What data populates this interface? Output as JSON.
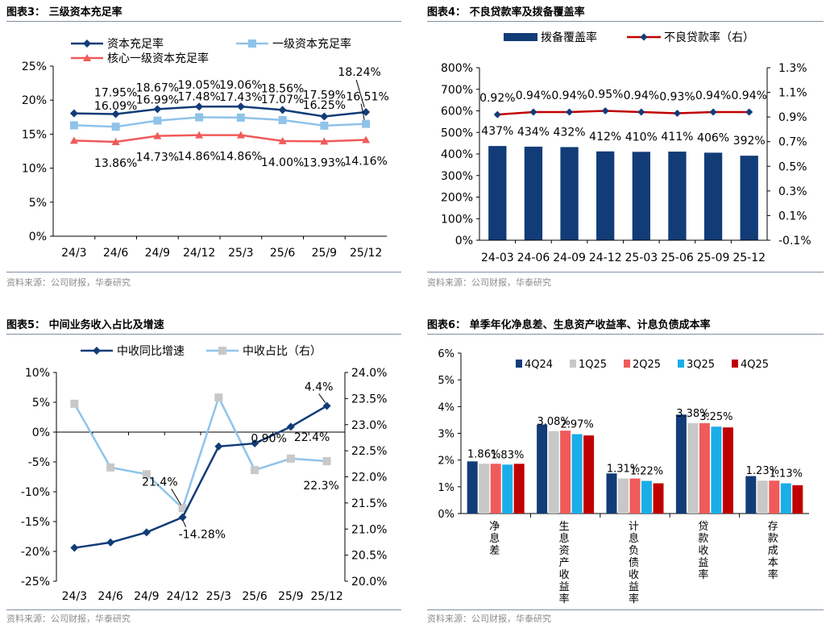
{
  "source_text": "资料来源：公司财报，华泰研究",
  "colors": {
    "navy": "#123c78",
    "lightblue": "#8fc3ea",
    "grey": "#c8c8c8",
    "red": "#f05a5a",
    "cyan": "#1aaee8",
    "darkred": "#c00000",
    "rule": "#7f8fa6"
  },
  "chart_data": [
    {
      "id": "chart3",
      "title": "图表3：  三级资本充足率",
      "type": "line",
      "categories": [
        "24/3",
        "24/6",
        "24/9",
        "24/12",
        "25/3",
        "25/6",
        "25/9",
        "25/12"
      ],
      "ylim": [
        0,
        25
      ],
      "yticks": [
        "0%",
        "5%",
        "10%",
        "15%",
        "20%",
        "25%"
      ],
      "legend_position": "top",
      "grid": false,
      "series": [
        {
          "name": "资本充足率",
          "values": [
            18.05,
            17.95,
            18.67,
            19.05,
            19.06,
            18.56,
            17.59,
            18.24
          ],
          "labels": [
            "",
            "17.95%",
            "18.67%",
            "19.05%",
            "19.06%",
            "18.56%",
            "17.59%",
            "18.24%"
          ]
        },
        {
          "name": "一级资本充足率",
          "values": [
            16.3,
            16.09,
            16.99,
            17.48,
            17.43,
            17.07,
            16.25,
            16.51
          ],
          "labels": [
            "",
            "16.09%",
            "16.99%",
            "17.48%",
            "17.43%",
            "17.07%",
            "16.25%",
            "16.51%"
          ]
        },
        {
          "name": "核心一级资本充足率",
          "values": [
            14.05,
            13.86,
            14.73,
            14.86,
            14.86,
            14.0,
            13.93,
            14.16
          ],
          "labels": [
            "",
            "13.86%",
            "14.73%",
            "14.86%",
            "14.86%",
            "14.00%",
            "13.93%",
            "14.16%"
          ]
        }
      ]
    },
    {
      "id": "chart4",
      "title": "图表4：  不良贷款率及拨备覆盖率",
      "type": "bar",
      "categories": [
        "24-03",
        "24-06",
        "24-09",
        "24-12",
        "25-03",
        "25-06",
        "25-09",
        "25-12"
      ],
      "ylim": [
        0,
        800
      ],
      "yticks": [
        "0%",
        "100%",
        "200%",
        "300%",
        "400%",
        "500%",
        "600%",
        "700%",
        "800%"
      ],
      "y2lim": [
        -0.1,
        1.3
      ],
      "y2ticks": [
        "-0.1%",
        "0.1%",
        "0.3%",
        "0.5%",
        "0.7%",
        "0.9%",
        "1.1%",
        "1.3%"
      ],
      "legend_position": "top",
      "grid": false,
      "series": [
        {
          "name": "拨备覆盖率",
          "kind": "bar",
          "axis": "left",
          "values": [
            437,
            434,
            432,
            412,
            410,
            411,
            406,
            392
          ],
          "labels": [
            "437%",
            "434%",
            "432%",
            "412%",
            "410%",
            "411%",
            "406%",
            "392%"
          ]
        },
        {
          "name": "不良贷款率（右）",
          "kind": "line",
          "axis": "right",
          "values": [
            0.92,
            0.94,
            0.94,
            0.95,
            0.94,
            0.93,
            0.94,
            0.94
          ],
          "labels": [
            "0.92%",
            "0.94%",
            "0.94%",
            "0.95%",
            "0.94%",
            "0.93%",
            "0.94%",
            "0.94%"
          ]
        }
      ]
    },
    {
      "id": "chart5",
      "title": "图表5：  中间业务收入占比及增速",
      "type": "line",
      "categories": [
        "24/3",
        "24/6",
        "24/9",
        "24/12",
        "25/3",
        "25/6",
        "25/9",
        "25/12"
      ],
      "ylim": [
        -25,
        10
      ],
      "yticks": [
        "-25%",
        "-20%",
        "-15%",
        "-10%",
        "-5%",
        "0%",
        "5%",
        "10%"
      ],
      "y2lim": [
        20.0,
        24.0
      ],
      "y2ticks": [
        "20.0%",
        "20.5%",
        "21.0%",
        "21.5%",
        "22.0%",
        "22.5%",
        "23.0%",
        "23.5%",
        "24.0%"
      ],
      "legend_position": "top",
      "grid": false,
      "series": [
        {
          "name": "中收同比增速",
          "axis": "left",
          "values": [
            -19.4,
            -18.5,
            -16.8,
            -14.28,
            -2.4,
            -1.9,
            0.9,
            4.4
          ]
        },
        {
          "name": "中收占比（右）",
          "axis": "right",
          "values": [
            23.4,
            22.18,
            22.05,
            21.4,
            23.52,
            22.13,
            22.35,
            22.3
          ]
        }
      ],
      "annotations": [
        {
          "series": 0,
          "index": 3,
          "text": "-14.28%"
        },
        {
          "series": 0,
          "index": 6,
          "text": "0.90%"
        },
        {
          "series": 0,
          "index": 7,
          "text": "4.4%"
        },
        {
          "series": 1,
          "index": 3,
          "text": "21.4%"
        },
        {
          "series": 1,
          "index": 6,
          "text": "22.4%"
        },
        {
          "series": 1,
          "index": 7,
          "text": "22.3%"
        }
      ]
    },
    {
      "id": "chart6",
      "title": "图表6：  单季年化净息差、生息资产收益率、计息负债成本率",
      "type": "bar",
      "categories": [
        "净息差",
        "生息资产收益率",
        "计息负债收益率",
        "贷款收益率",
        "存款成本率"
      ],
      "ylim": [
        0,
        6
      ],
      "yticks": [
        "0%",
        "1%",
        "2%",
        "3%",
        "4%",
        "5%",
        "6%"
      ],
      "legend_position": "top",
      "grid": false,
      "series": [
        {
          "name": "4Q24",
          "values": [
            1.95,
            3.33,
            1.5,
            3.7,
            1.4
          ]
        },
        {
          "name": "1Q25",
          "values": [
            1.86,
            3.08,
            1.31,
            3.38,
            1.23
          ]
        },
        {
          "name": "2Q25",
          "values": [
            1.86,
            3.1,
            1.31,
            3.38,
            1.23
          ]
        },
        {
          "name": "3Q25",
          "values": [
            1.83,
            2.97,
            1.22,
            3.25,
            1.13
          ]
        },
        {
          "name": "4Q25",
          "values": [
            1.86,
            2.92,
            1.13,
            3.22,
            1.06
          ]
        }
      ],
      "annotations": [
        {
          "series": 1,
          "index": 0,
          "text": "1.86%"
        },
        {
          "series": 3,
          "index": 0,
          "text": "1.83%"
        },
        {
          "series": 1,
          "index": 1,
          "text": "3.08%"
        },
        {
          "series": 3,
          "index": 1,
          "text": "2.97%"
        },
        {
          "series": 1,
          "index": 2,
          "text": "1.31%"
        },
        {
          "series": 3,
          "index": 2,
          "text": "1.22%"
        },
        {
          "series": 1,
          "index": 3,
          "text": "3.38%"
        },
        {
          "series": 3,
          "index": 3,
          "text": "3.25%"
        },
        {
          "series": 1,
          "index": 4,
          "text": "1.23%"
        },
        {
          "series": 3,
          "index": 4,
          "text": "1.13%"
        }
      ]
    }
  ]
}
